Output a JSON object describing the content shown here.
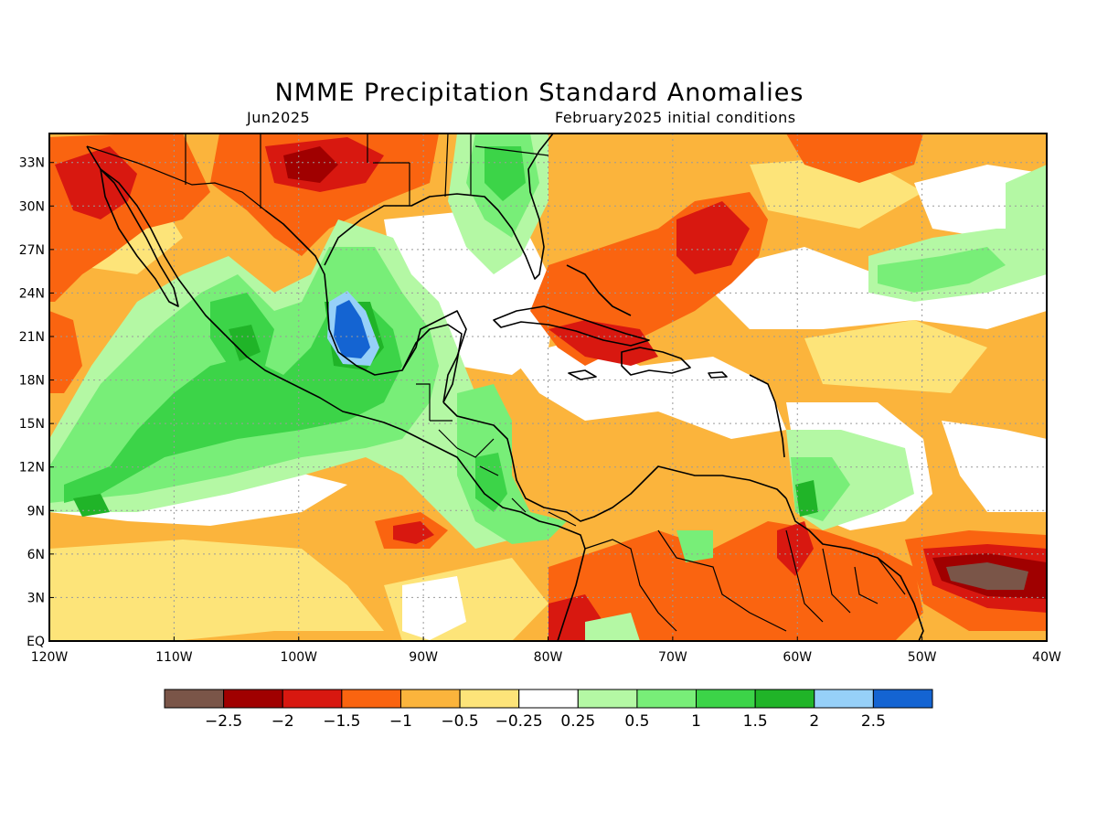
{
  "map": {
    "title": "NMME Precipitation Standard Anomalies",
    "target_month": "Jun2025",
    "initial_conditions": "February2025 initial conditions",
    "extent": {
      "lon_min": -120,
      "lon_max": -40,
      "lat_min": 0,
      "lat_max": 35
    },
    "lat_labels": [
      "33N",
      "30N",
      "27N",
      "24N",
      "21N",
      "18N",
      "15N",
      "12N",
      "9N",
      "6N",
      "3N",
      "EQ"
    ],
    "lat_values": [
      33,
      30,
      27,
      24,
      21,
      18,
      15,
      12,
      9,
      6,
      3,
      0
    ],
    "lon_labels": [
      "120W",
      "110W",
      "100W",
      "90W",
      "80W",
      "70W",
      "60W",
      "50W",
      "40W"
    ],
    "lon_values": [
      -120,
      -110,
      -100,
      -90,
      -80,
      -70,
      -60,
      -50,
      -40
    ],
    "colorbar": {
      "colors": [
        "#7a5548",
        "#a00000",
        "#d81810",
        "#fa6410",
        "#fbb43c",
        "#fde479",
        "#ffffff",
        "#b4f8a4",
        "#78ee78",
        "#3cd448",
        "#20b428",
        "#96d0f8",
        "#1464d2"
      ],
      "labels": [
        "−2.5",
        "−2",
        "−1.5",
        "−1",
        "−0.5",
        "−0.25",
        "0.25",
        "0.5",
        "1",
        "1.5",
        "2",
        "2.5"
      ]
    },
    "base_color": "#fbb43c"
  }
}
